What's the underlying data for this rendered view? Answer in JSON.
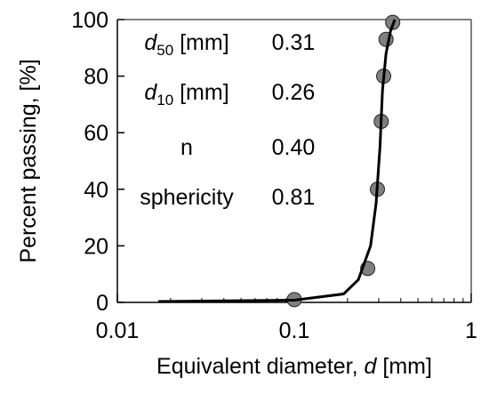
{
  "chart_data": {
    "type": "scatter",
    "xscale": "log",
    "xlim": [
      0.01,
      1
    ],
    "ylim": [
      0,
      100
    ],
    "xlabel": {
      "prefix": "Equivalent diameter, ",
      "var": "d",
      "suffix": " [mm]"
    },
    "ylabel": "Percent passing, [%]",
    "x_ticks": [
      {
        "value": 0.01,
        "label": "0.01"
      },
      {
        "value": 0.1,
        "label": "0.1"
      },
      {
        "value": 1,
        "label": "1"
      }
    ],
    "y_ticks": [
      {
        "value": 0,
        "label": "0"
      },
      {
        "value": 20,
        "label": "20"
      },
      {
        "value": 40,
        "label": "40"
      },
      {
        "value": 60,
        "label": "60"
      },
      {
        "value": 80,
        "label": "80"
      },
      {
        "value": 100,
        "label": "100"
      }
    ],
    "grid": false,
    "series": [
      {
        "type": "scatter",
        "color": "#808080",
        "points": [
          {
            "x": 0.1,
            "y": 1
          },
          {
            "x": 0.26,
            "y": 12
          },
          {
            "x": 0.295,
            "y": 40
          },
          {
            "x": 0.31,
            "y": 64
          },
          {
            "x": 0.32,
            "y": 80
          },
          {
            "x": 0.33,
            "y": 93
          },
          {
            "x": 0.36,
            "y": 99
          }
        ]
      },
      {
        "type": "line",
        "color": "#000000",
        "points": [
          {
            "x": 0.017,
            "y": 0.3
          },
          {
            "x": 0.1,
            "y": 0.8
          },
          {
            "x": 0.19,
            "y": 3
          },
          {
            "x": 0.23,
            "y": 8
          },
          {
            "x": 0.27,
            "y": 20
          },
          {
            "x": 0.29,
            "y": 35
          },
          {
            "x": 0.305,
            "y": 55
          },
          {
            "x": 0.315,
            "y": 75
          },
          {
            "x": 0.33,
            "y": 88
          },
          {
            "x": 0.35,
            "y": 96
          },
          {
            "x": 0.37,
            "y": 100
          }
        ]
      }
    ],
    "annotations": [
      {
        "label_var": "d",
        "label_sub": "50",
        "label_unit": " [mm]",
        "value": "0.31"
      },
      {
        "label_var": "d",
        "label_sub": "10",
        "label_unit": " [mm]",
        "value": "0.26"
      },
      {
        "label_text": "n",
        "value": "0.40"
      },
      {
        "label_text": "sphericity",
        "value": "0.81"
      }
    ]
  }
}
